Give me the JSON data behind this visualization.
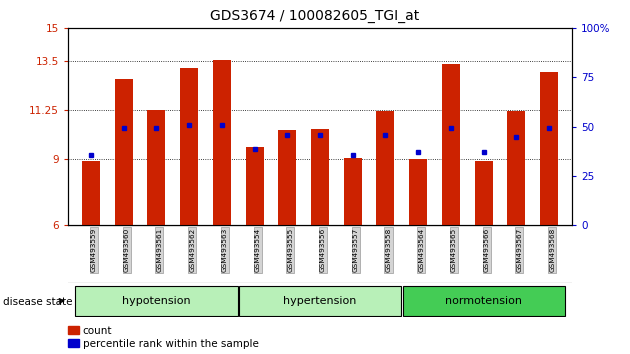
{
  "title": "GDS3674 / 100082605_TGI_at",
  "samples": [
    "GSM493559",
    "GSM493560",
    "GSM493561",
    "GSM493562",
    "GSM493563",
    "GSM493554",
    "GSM493555",
    "GSM493556",
    "GSM493557",
    "GSM493558",
    "GSM493564",
    "GSM493565",
    "GSM493566",
    "GSM493567",
    "GSM493568"
  ],
  "count_values": [
    8.9,
    12.7,
    11.25,
    13.2,
    13.55,
    9.55,
    10.35,
    10.4,
    9.05,
    11.2,
    9.0,
    13.35,
    8.9,
    11.2,
    13.0
  ],
  "percentile_values": [
    9.2,
    10.45,
    10.45,
    10.55,
    10.55,
    9.45,
    10.1,
    10.1,
    9.2,
    10.1,
    9.35,
    10.45,
    9.35,
    10.0,
    10.45
  ],
  "ymin": 6,
  "ymax": 15,
  "yticks": [
    6,
    9,
    11.25,
    13.5,
    15
  ],
  "ytick_labels": [
    "6",
    "9",
    "11.25",
    "13.5",
    "15"
  ],
  "y2ticks": [
    0,
    25,
    50,
    75,
    100
  ],
  "y2tick_labels": [
    "0",
    "25",
    "50",
    "75",
    "100%"
  ],
  "bar_color": "#cc2200",
  "marker_color": "#0000cc",
  "tick_color": "#cc2200",
  "tick_color2": "#0000cc",
  "title_fontsize": 10,
  "axis_fontsize": 7.5,
  "label_fontsize": 5.5,
  "legend_fontsize": 7.5,
  "group_fontsize": 8,
  "bar_width": 0.55,
  "groups_info": [
    {
      "label": "hypotension",
      "start": 0,
      "end": 4,
      "color": "#b8f0b8"
    },
    {
      "label": "hypertension",
      "start": 5,
      "end": 9,
      "color": "#b8f0b8"
    },
    {
      "label": "normotension",
      "start": 10,
      "end": 14,
      "color": "#44cc55"
    }
  ]
}
